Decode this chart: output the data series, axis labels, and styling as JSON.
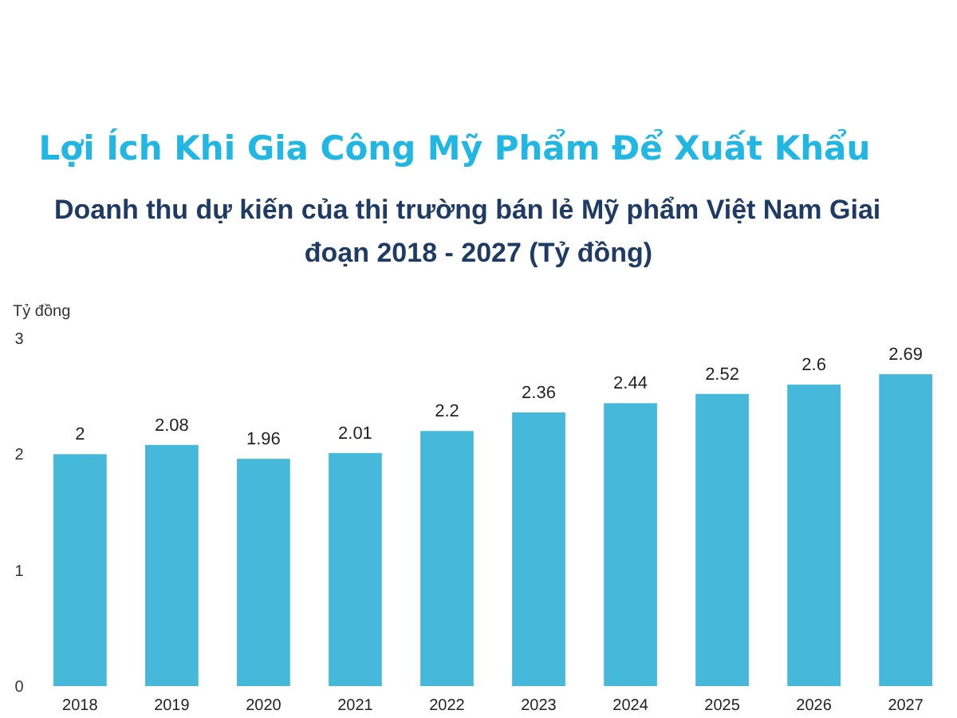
{
  "chart_data": {
    "type": "bar",
    "title": "Lợi Ích Khi Gia Công Mỹ Phẩm Để Xuất Khẩu",
    "subtitle": "Doanh thu dự kiến của thị trường bán lẻ Mỹ phẩm Việt Nam Giai đoạn 2018 - 2027 (Tỷ đồng)",
    "ylabel": "Tỷ đồng",
    "categories": [
      "2018",
      "2019",
      "2020",
      "2021",
      "2022",
      "2023",
      "2024",
      "2025",
      "2026",
      "2027"
    ],
    "values": [
      2,
      2.08,
      1.96,
      2.01,
      2.2,
      2.36,
      2.44,
      2.52,
      2.6,
      2.69
    ],
    "color": "#46b9da",
    "ylim": [
      0,
      3
    ],
    "yticks": [
      0,
      1,
      2,
      3
    ],
    "grid": false,
    "data_labels": true
  }
}
